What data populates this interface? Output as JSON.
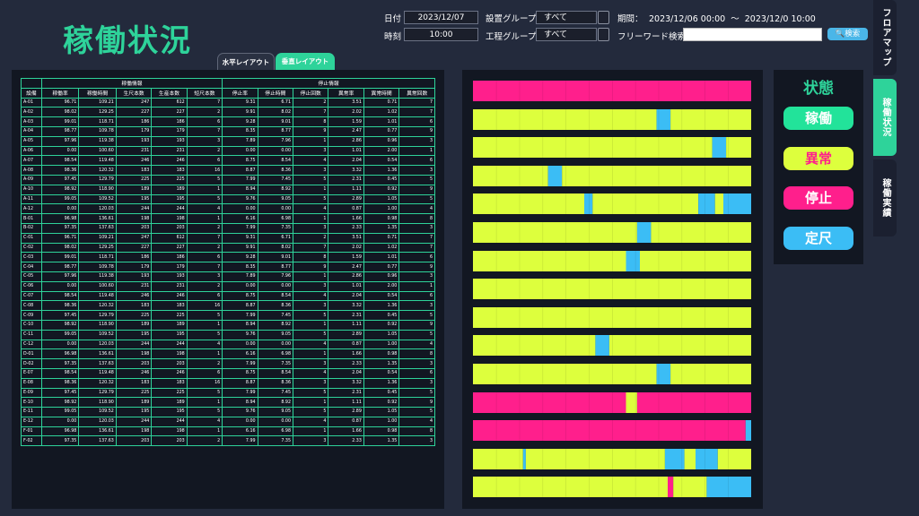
{
  "header": {
    "title": "稼働状況",
    "date_label": "日付",
    "date_value": "2023/12/07",
    "time_label": "時刻",
    "time_value": "10:00",
    "equip_group_label": "設置グループ",
    "equip_group_value": "すべて",
    "process_group_label": "工程グループ",
    "process_group_value": "すべて",
    "period_label": "期間：",
    "period_value": "2023/12/06 00:00  ～  2023/12/0 10:00",
    "freeword_label": "フリーワード検索",
    "freeword_value": "",
    "search_label": "🔍検索"
  },
  "tabs": {
    "horizontal": "水平レイアウト",
    "vertical": "垂直レイアウト"
  },
  "table": {
    "group_running": "稼働情報",
    "group_stop": "停止情報",
    "columns": [
      "設備",
      "稼働率",
      "稼働時間",
      "生尺本数",
      "生産本数",
      "短尺本数",
      "停止率",
      "停止時間",
      "停止回数",
      "異常率",
      "異常時間",
      "異常回数"
    ],
    "rows": [
      [
        "A-01",
        "96.71",
        "109.21",
        "247",
        "612",
        "7",
        "9.31",
        "6.71",
        "2",
        "3.51",
        "0.71",
        "7"
      ],
      [
        "A-02",
        "98.02",
        "129.25",
        "227",
        "227",
        "2",
        "9.91",
        "8.02",
        "7",
        "2.02",
        "1.02",
        "7"
      ],
      [
        "A-03",
        "99.01",
        "118.71",
        "186",
        "186",
        "6",
        "9.28",
        "9.01",
        "8",
        "1.59",
        "1.01",
        "6"
      ],
      [
        "A-04",
        "98.77",
        "109.78",
        "179",
        "179",
        "7",
        "8.35",
        "8.77",
        "9",
        "2.47",
        "0.77",
        "9"
      ],
      [
        "A-05",
        "97.96",
        "119.38",
        "193",
        "193",
        "3",
        "7.89",
        "7.96",
        "1",
        "2.86",
        "0.96",
        "3"
      ],
      [
        "A-06",
        "0.00",
        "100.60",
        "231",
        "231",
        "2",
        "0.00",
        "0.00",
        "3",
        "1.01",
        "2.00",
        "1"
      ],
      [
        "A-07",
        "98.54",
        "119.48",
        "246",
        "246",
        "6",
        "8.75",
        "8.54",
        "4",
        "2.04",
        "0.54",
        "6"
      ],
      [
        "A-08",
        "98.36",
        "120.32",
        "183",
        "183",
        "16",
        "8.87",
        "8.36",
        "3",
        "3.32",
        "1.36",
        "3"
      ],
      [
        "A-09",
        "97.45",
        "129.79",
        "225",
        "225",
        "5",
        "7.99",
        "7.45",
        "5",
        "2.31",
        "0.45",
        "5"
      ],
      [
        "A-10",
        "98.92",
        "118.90",
        "189",
        "189",
        "1",
        "8.94",
        "8.92",
        "1",
        "1.11",
        "0.92",
        "9"
      ],
      [
        "A-11",
        "99.05",
        "109.52",
        "195",
        "195",
        "5",
        "9.76",
        "9.05",
        "5",
        "2.89",
        "1.05",
        "5"
      ],
      [
        "A-12",
        "0.00",
        "120.03",
        "244",
        "244",
        "4",
        "0.00",
        "0.00",
        "4",
        "0.87",
        "1.00",
        "4"
      ],
      [
        "B-01",
        "96.98",
        "136.61",
        "198",
        "198",
        "1",
        "6.16",
        "6.98",
        "1",
        "1.66",
        "0.98",
        "8"
      ],
      [
        "B-02",
        "97.35",
        "137.63",
        "203",
        "203",
        "2",
        "7.99",
        "7.35",
        "3",
        "2.33",
        "1.35",
        "3"
      ],
      [
        "C-01",
        "96.71",
        "109.21",
        "247",
        "612",
        "7",
        "9.31",
        "6.71",
        "2",
        "3.51",
        "0.71",
        "7"
      ],
      [
        "C-02",
        "98.02",
        "129.25",
        "227",
        "227",
        "2",
        "9.91",
        "8.02",
        "7",
        "2.02",
        "1.02",
        "7"
      ],
      [
        "C-03",
        "99.01",
        "118.71",
        "186",
        "186",
        "6",
        "9.28",
        "9.01",
        "8",
        "1.59",
        "1.01",
        "6"
      ],
      [
        "C-04",
        "98.77",
        "109.78",
        "179",
        "179",
        "7",
        "8.35",
        "8.77",
        "9",
        "2.47",
        "0.77",
        "9"
      ],
      [
        "C-05",
        "97.96",
        "119.38",
        "193",
        "193",
        "3",
        "7.89",
        "7.96",
        "1",
        "2.86",
        "0.96",
        "3"
      ],
      [
        "C-06",
        "0.00",
        "100.60",
        "231",
        "231",
        "2",
        "0.00",
        "0.00",
        "3",
        "1.01",
        "2.00",
        "1"
      ],
      [
        "C-07",
        "98.54",
        "119.48",
        "246",
        "246",
        "6",
        "8.75",
        "8.54",
        "4",
        "2.04",
        "0.54",
        "6"
      ],
      [
        "C-08",
        "98.36",
        "120.32",
        "183",
        "183",
        "16",
        "8.87",
        "8.36",
        "3",
        "3.32",
        "1.36",
        "3"
      ],
      [
        "C-09",
        "97.45",
        "129.79",
        "225",
        "225",
        "5",
        "7.99",
        "7.45",
        "5",
        "2.31",
        "0.45",
        "5"
      ],
      [
        "C-10",
        "98.92",
        "118.90",
        "189",
        "189",
        "1",
        "8.94",
        "8.92",
        "1",
        "1.11",
        "0.92",
        "9"
      ],
      [
        "C-11",
        "99.05",
        "109.52",
        "195",
        "195",
        "5",
        "9.76",
        "9.05",
        "5",
        "2.89",
        "1.05",
        "5"
      ],
      [
        "C-12",
        "0.00",
        "120.03",
        "244",
        "244",
        "4",
        "0.00",
        "0.00",
        "4",
        "0.87",
        "1.00",
        "4"
      ],
      [
        "D-01",
        "96.98",
        "136.61",
        "198",
        "198",
        "1",
        "6.16",
        "6.98",
        "1",
        "1.66",
        "0.98",
        "8"
      ],
      [
        "D-02",
        "97.35",
        "137.63",
        "203",
        "203",
        "2",
        "7.99",
        "7.35",
        "3",
        "2.33",
        "1.35",
        "3"
      ],
      [
        "E-07",
        "98.54",
        "119.48",
        "246",
        "246",
        "6",
        "8.75",
        "8.54",
        "4",
        "2.04",
        "0.54",
        "6"
      ],
      [
        "E-08",
        "98.36",
        "120.32",
        "183",
        "183",
        "16",
        "8.87",
        "8.36",
        "3",
        "3.32",
        "1.36",
        "3"
      ],
      [
        "E-09",
        "97.45",
        "129.79",
        "225",
        "225",
        "5",
        "7.99",
        "7.45",
        "5",
        "2.31",
        "0.45",
        "5"
      ],
      [
        "E-10",
        "98.92",
        "118.90",
        "189",
        "189",
        "1",
        "8.94",
        "8.92",
        "1",
        "1.11",
        "0.92",
        "9"
      ],
      [
        "E-11",
        "99.05",
        "109.52",
        "195",
        "195",
        "5",
        "9.76",
        "9.05",
        "5",
        "2.89",
        "1.05",
        "5"
      ],
      [
        "E-12",
        "0.00",
        "120.03",
        "244",
        "244",
        "4",
        "0.00",
        "0.00",
        "4",
        "0.87",
        "1.00",
        "4"
      ],
      [
        "F-01",
        "96.98",
        "136.61",
        "198",
        "198",
        "1",
        "6.16",
        "6.98",
        "1",
        "1.66",
        "0.98",
        "8"
      ],
      [
        "F-02",
        "97.35",
        "137.63",
        "203",
        "203",
        "2",
        "7.99",
        "7.35",
        "3",
        "2.33",
        "1.35",
        "3"
      ]
    ]
  },
  "status_colors": {
    "run": "#22e39a",
    "abnormal": "#ddff3d",
    "stop": "#ff1f8c",
    "fixed": "#3bbdf5"
  },
  "timelines": [
    [
      [
        "stop",
        1.0
      ]
    ],
    [
      [
        "abnormal",
        0.66
      ],
      [
        "fixed",
        0.05
      ],
      [
        "abnormal",
        0.29
      ]
    ],
    [
      [
        "abnormal",
        0.86
      ],
      [
        "fixed",
        0.05
      ],
      [
        "abnormal",
        0.09
      ]
    ],
    [
      [
        "abnormal",
        0.27
      ],
      [
        "fixed",
        0.05
      ],
      [
        "abnormal",
        0.68
      ]
    ],
    [
      [
        "abnormal",
        0.4
      ],
      [
        "fixed",
        0.03
      ],
      [
        "abnormal",
        0.38
      ],
      [
        "fixed",
        0.06
      ],
      [
        "abnormal",
        0.03
      ],
      [
        "fixed",
        0.1
      ]
    ],
    [
      [
        "abnormal",
        0.59
      ],
      [
        "fixed",
        0.05
      ],
      [
        "abnormal",
        0.36
      ]
    ],
    [
      [
        "abnormal",
        0.55
      ],
      [
        "fixed",
        0.05
      ],
      [
        "abnormal",
        0.4
      ]
    ],
    [
      [
        "abnormal",
        1.0
      ]
    ],
    [
      [
        "abnormal",
        1.0
      ]
    ],
    [
      [
        "abnormal",
        0.44
      ],
      [
        "fixed",
        0.05
      ],
      [
        "abnormal",
        0.51
      ]
    ],
    [
      [
        "abnormal",
        0.66
      ],
      [
        "fixed",
        0.05
      ],
      [
        "abnormal",
        0.29
      ]
    ],
    [
      [
        "stop",
        0.55
      ],
      [
        "abnormal",
        0.04
      ],
      [
        "stop",
        0.41
      ]
    ],
    [
      [
        "stop",
        0.98
      ],
      [
        "fixed",
        0.02
      ]
    ],
    [
      [
        "abnormal",
        0.18
      ],
      [
        "fixed",
        0.01
      ],
      [
        "abnormal",
        0.5
      ],
      [
        "fixed",
        0.07
      ],
      [
        "abnormal",
        0.04
      ],
      [
        "fixed",
        0.08
      ],
      [
        "abnormal",
        0.12
      ]
    ],
    [
      [
        "abnormal",
        0.7
      ],
      [
        "stop",
        0.02
      ],
      [
        "abnormal",
        0.12
      ],
      [
        "fixed",
        0.16
      ]
    ]
  ],
  "legend": {
    "title": "状態",
    "run": "稼働",
    "abnormal": "異常",
    "stop": "停止",
    "fixed": "定尺"
  },
  "side_tabs": {
    "floor_map": "フロアマップ",
    "status": "稼働状況",
    "results": "稼働実績"
  }
}
